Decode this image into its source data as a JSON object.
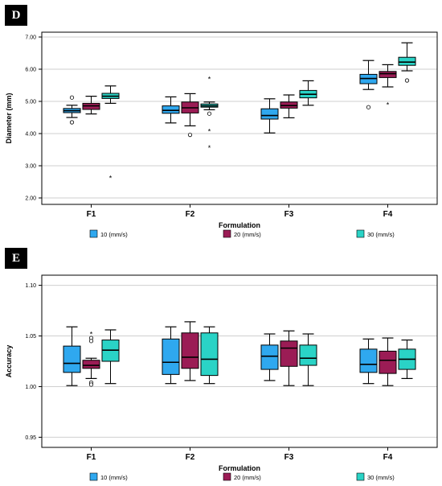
{
  "chart_data": [
    {
      "type": "box",
      "panel_label": "D",
      "title": "",
      "xlabel": "Formulation",
      "ylabel": "Diameter (mm)",
      "categories": [
        "F1",
        "F2",
        "F3",
        "F4"
      ],
      "ylim": [
        1.8,
        7.15
      ],
      "yticks": [
        2.0,
        3.0,
        4.0,
        5.0,
        6.0,
        7.0
      ],
      "ytick_labels": [
        "2.00",
        "3.00",
        "4.00",
        "5.00",
        "6.00",
        "7.00"
      ],
      "grid": true,
      "legend_position": "bottom",
      "series": [
        {
          "name": "10 (mm/s)",
          "color": "#2fa8ef",
          "boxes": [
            {
              "min": 4.5,
              "q1": 4.65,
              "median": 4.71,
              "q3": 4.78,
              "max": 4.88,
              "outliers": [
                5.12,
                4.35
              ],
              "extremes": []
            },
            {
              "min": 4.33,
              "q1": 4.63,
              "median": 4.72,
              "q3": 4.86,
              "max": 5.14,
              "outliers": [],
              "extremes": []
            },
            {
              "min": 4.02,
              "q1": 4.45,
              "median": 4.56,
              "q3": 4.77,
              "max": 5.08,
              "outliers": [],
              "extremes": []
            },
            {
              "min": 5.37,
              "q1": 5.55,
              "median": 5.71,
              "q3": 5.84,
              "max": 6.27,
              "outliers": [
                4.82
              ],
              "extremes": []
            }
          ]
        },
        {
          "name": "20 (mm/s)",
          "color": "#9b1c55",
          "boxes": [
            {
              "min": 4.61,
              "q1": 4.75,
              "median": 4.86,
              "q3": 4.94,
              "max": 5.16,
              "outliers": [],
              "extremes": []
            },
            {
              "min": 4.24,
              "q1": 4.64,
              "median": 4.8,
              "q3": 4.98,
              "max": 5.24,
              "outliers": [
                3.96
              ],
              "extremes": []
            },
            {
              "min": 4.49,
              "q1": 4.79,
              "median": 4.87,
              "q3": 4.98,
              "max": 5.2,
              "outliers": [],
              "extremes": []
            },
            {
              "min": 5.45,
              "q1": 5.74,
              "median": 5.86,
              "q3": 5.93,
              "max": 6.14,
              "outliers": [],
              "extremes": [
                4.9
              ]
            }
          ]
        },
        {
          "name": "30 (mm/s)",
          "color": "#2ad3c6",
          "boxes": [
            {
              "min": 4.94,
              "q1": 5.09,
              "median": 5.16,
              "q3": 5.25,
              "max": 5.48,
              "outliers": [],
              "extremes": [
                2.62
              ]
            },
            {
              "min": 4.74,
              "q1": 4.82,
              "median": 4.86,
              "q3": 4.92,
              "max": 4.98,
              "outliers": [
                4.62
              ],
              "extremes": [
                5.7,
                4.08,
                3.56
              ]
            },
            {
              "min": 4.88,
              "q1": 5.11,
              "median": 5.22,
              "q3": 5.34,
              "max": 5.64,
              "outliers": [],
              "extremes": []
            },
            {
              "min": 5.95,
              "q1": 6.12,
              "median": 6.22,
              "q3": 6.37,
              "max": 6.82,
              "outliers": [
                5.65
              ],
              "extremes": []
            }
          ]
        }
      ]
    },
    {
      "type": "box",
      "panel_label": "E",
      "title": "",
      "xlabel": "Formulation",
      "ylabel": "Accuracy",
      "categories": [
        "F1",
        "F2",
        "F3",
        "F4"
      ],
      "ylim": [
        0.94,
        1.11
      ],
      "yticks": [
        0.95,
        1.0,
        1.05,
        1.1
      ],
      "ytick_labels": [
        "0.95",
        "1.00",
        "1.05",
        "1.10"
      ],
      "grid": true,
      "legend_position": "bottom",
      "series": [
        {
          "name": "10 (mm/s)",
          "color": "#2fa8ef",
          "boxes": [
            {
              "min": 1.001,
              "q1": 1.014,
              "median": 1.023,
              "q3": 1.04,
              "max": 1.059,
              "outliers": [],
              "extremes": []
            },
            {
              "min": 1.003,
              "q1": 1.012,
              "median": 1.024,
              "q3": 1.047,
              "max": 1.059,
              "outliers": [],
              "extremes": []
            },
            {
              "min": 1.006,
              "q1": 1.017,
              "median": 1.03,
              "q3": 1.041,
              "max": 1.052,
              "outliers": [],
              "extremes": []
            },
            {
              "min": 1.003,
              "q1": 1.014,
              "median": 1.022,
              "q3": 1.037,
              "max": 1.047,
              "outliers": [],
              "extremes": []
            }
          ]
        },
        {
          "name": "20 (mm/s)",
          "color": "#9b1c55",
          "boxes": [
            {
              "min": 1.008,
              "q1": 1.018,
              "median": 1.021,
              "q3": 1.026,
              "max": 1.028,
              "outliers": [
                1.048,
                1.045,
                1.004,
                1.002
              ],
              "extremes": [
                1.052
              ]
            },
            {
              "min": 1.006,
              "q1": 1.018,
              "median": 1.029,
              "q3": 1.053,
              "max": 1.064,
              "outliers": [],
              "extremes": []
            },
            {
              "min": 1.001,
              "q1": 1.02,
              "median": 1.038,
              "q3": 1.045,
              "max": 1.055,
              "outliers": [],
              "extremes": []
            },
            {
              "min": 1.001,
              "q1": 1.013,
              "median": 1.026,
              "q3": 1.035,
              "max": 1.048,
              "outliers": [],
              "extremes": []
            }
          ]
        },
        {
          "name": "30 (mm/s)",
          "color": "#2ad3c6",
          "boxes": [
            {
              "min": 1.003,
              "q1": 1.025,
              "median": 1.036,
              "q3": 1.046,
              "max": 1.056,
              "outliers": [],
              "extremes": []
            },
            {
              "min": 1.003,
              "q1": 1.011,
              "median": 1.027,
              "q3": 1.053,
              "max": 1.059,
              "outliers": [],
              "extremes": []
            },
            {
              "min": 1.001,
              "q1": 1.021,
              "median": 1.028,
              "q3": 1.041,
              "max": 1.052,
              "outliers": [],
              "extremes": []
            },
            {
              "min": 1.008,
              "q1": 1.017,
              "median": 1.027,
              "q3": 1.037,
              "max": 1.046,
              "outliers": [],
              "extremes": []
            }
          ]
        }
      ]
    }
  ]
}
